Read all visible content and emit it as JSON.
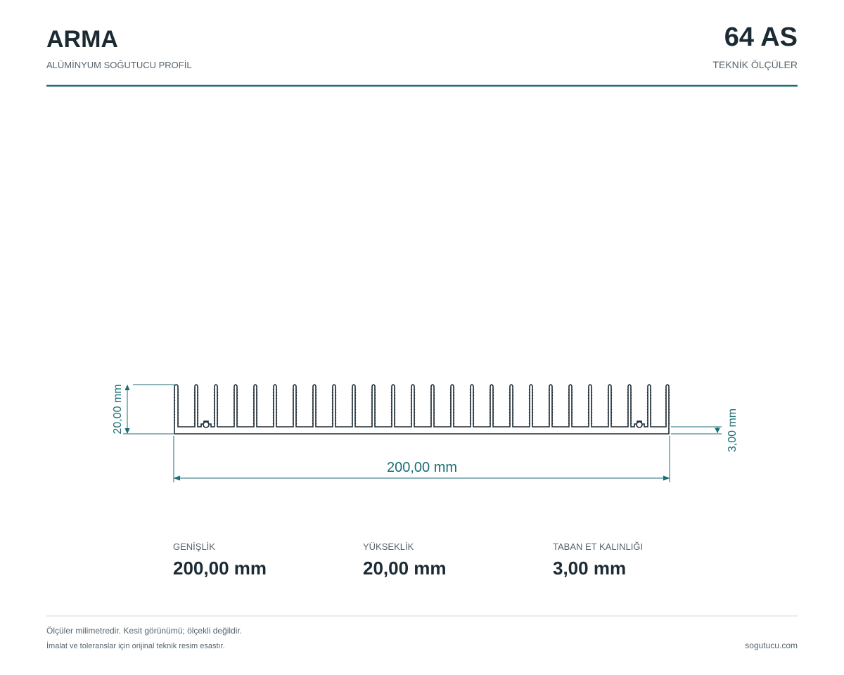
{
  "header": {
    "title": "ARMA",
    "subtitle": "ALÜMİNYUM SOĞUTUCU PROFİL",
    "code": "64 AS",
    "code_label": "TEKNİK ÖLÇÜLER"
  },
  "drawing": {
    "height_label": "20,00 mm",
    "width_label": "200,00 mm",
    "base_label": "3,00 mm"
  },
  "specs": [
    {
      "label": "GENİŞLİK",
      "value": "200,00 mm"
    },
    {
      "label": "YÜKSEKLİK",
      "value": "20,00 mm"
    },
    {
      "label": "TABAN ET KALINLIĞI",
      "value": "3,00 mm"
    }
  ],
  "footer": {
    "note1": "Ölçüler milimetredir. Kesit görünümü; ölçekli değildir.",
    "note2": "İmalat ve toleranslar için orijinal teknik resim esastır.",
    "site": "sogutucu.com"
  }
}
